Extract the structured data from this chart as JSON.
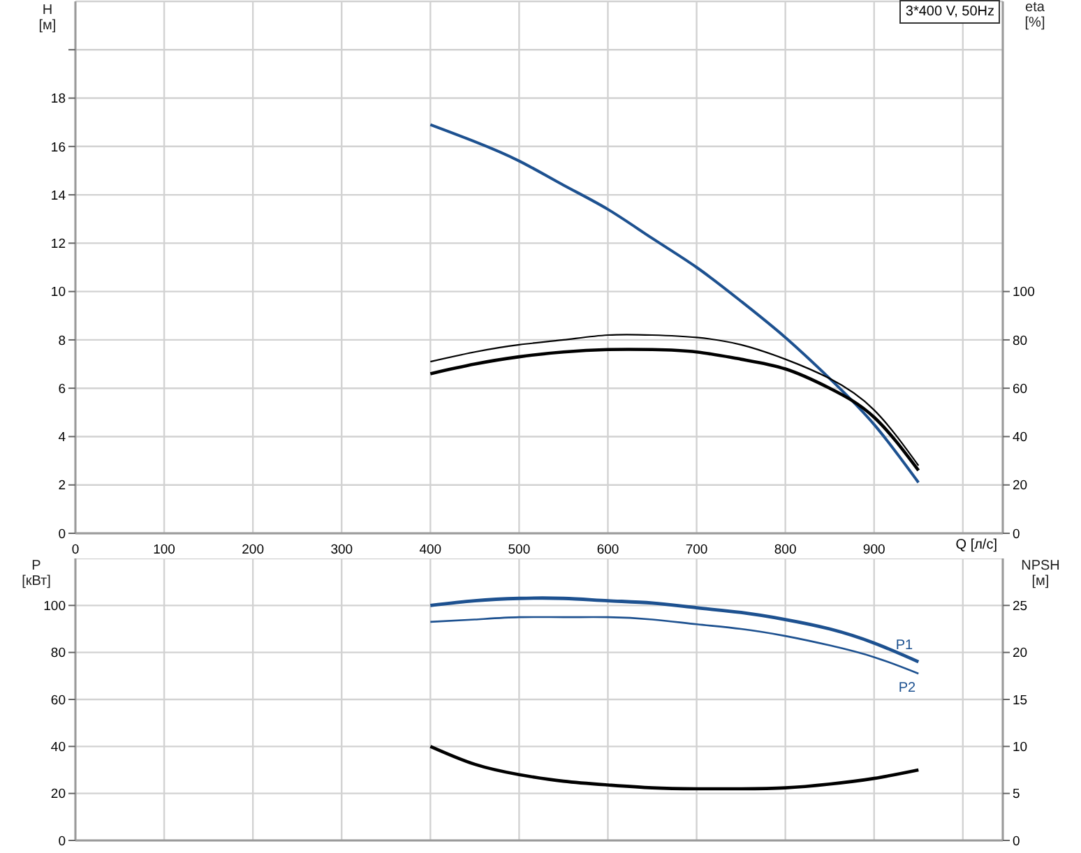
{
  "chart_data": [
    {
      "type": "line",
      "title": "3*400 V, 50Hz",
      "xlabel": "Q [л/с]",
      "ylabel": "H\n[м]",
      "y2label": "eta\n[%]",
      "x": [
        400,
        450,
        500,
        550,
        600,
        650,
        700,
        750,
        800,
        850,
        900,
        950
      ],
      "series": [
        {
          "color": "#1d5190",
          "values": [
            16.9,
            16.2,
            15.4,
            14.4,
            13.4,
            12.2,
            11.0,
            9.6,
            8.1,
            6.4,
            4.5,
            2.1
          ]
        },
        {
          "color": "#000000",
          "axis": "y2",
          "values": [
            71,
            75,
            78,
            80,
            82,
            82,
            81,
            78,
            72,
            64,
            51,
            28
          ]
        },
        {
          "color": "#000000",
          "axis": "y2",
          "values": [
            66,
            70,
            73,
            75,
            76,
            76,
            75,
            72,
            68,
            60,
            48,
            26
          ]
        }
      ],
      "xlim": [
        0,
        1045
      ],
      "xticks": [
        0,
        100,
        200,
        300,
        400,
        500,
        600,
        700,
        800,
        900,
        {
          "value": 1000,
          "label": null
        }
      ],
      "ylim": [
        0,
        22
      ],
      "yticks": [
        0,
        2,
        4,
        6,
        8,
        10,
        12,
        14,
        16,
        18,
        {
          "value": 20,
          "label": null
        }
      ],
      "y2lim": [
        0,
        220
      ],
      "y2ticks": [
        0,
        20,
        40,
        60,
        80,
        100
      ],
      "grid": true,
      "legend": false,
      "marker": "none"
    },
    {
      "type": "line",
      "ylabel": "P\n[кВт]",
      "y2label": "NPSH\n[м]",
      "x": [
        400,
        450,
        500,
        550,
        600,
        650,
        700,
        750,
        800,
        850,
        900,
        950
      ],
      "series": [
        {
          "name": "P1",
          "color": "#1d5190",
          "values": [
            100,
            102,
            103,
            103,
            102,
            101,
            99,
            97,
            94,
            90,
            84,
            76
          ]
        },
        {
          "name": "P2",
          "color": "#1d5190",
          "values": [
            93,
            94,
            95,
            95,
            95,
            94,
            92,
            90,
            87,
            83,
            78,
            71
          ]
        },
        {
          "color": "#000000",
          "axis": "y2",
          "values": [
            10,
            8.1,
            7.0,
            6.3,
            5.9,
            5.6,
            5.5,
            5.5,
            5.6,
            6.0,
            6.6,
            7.5
          ]
        }
      ],
      "xlim": [
        0,
        1045
      ],
      "xticks": [
        0,
        100,
        200,
        300,
        400,
        500,
        600,
        700,
        800,
        900,
        1000
      ],
      "ylim": [
        0,
        120
      ],
      "yticks": [
        0,
        20,
        40,
        60,
        80,
        100
      ],
      "y2lim": [
        0,
        30
      ],
      "y2ticks": [
        0,
        5,
        10,
        15,
        20,
        25
      ],
      "tick_labels": "y",
      "grid": true,
      "legend": false,
      "marker": "none"
    }
  ]
}
